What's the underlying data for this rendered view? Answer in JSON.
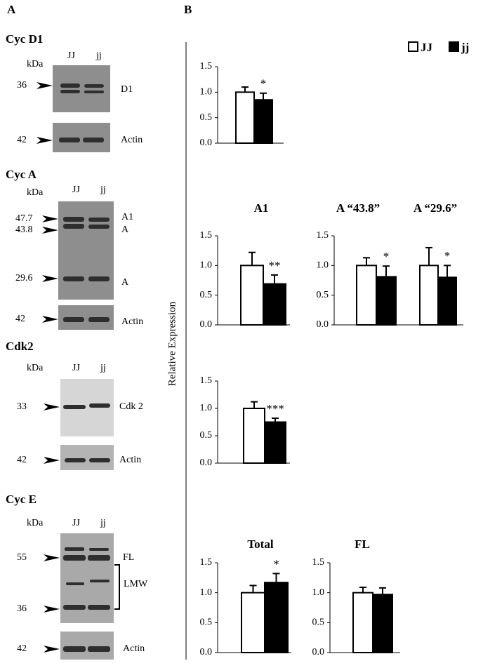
{
  "panel_a": {
    "label": "A",
    "blots": [
      {
        "title": "Cyc D1",
        "kda": "kDa",
        "lanes": [
          "JJ",
          "jj"
        ],
        "markers": [
          "36",
          "42"
        ],
        "bands": [
          "D1",
          "Actin"
        ]
      },
      {
        "title": "Cyc A",
        "kda": "kDa",
        "lanes": [
          "JJ",
          "jj"
        ],
        "markers": [
          "47.7",
          "43.8",
          "29.6",
          "42"
        ],
        "bands": [
          "A1",
          "A",
          "A",
          "Actin"
        ]
      },
      {
        "title": "Cdk2",
        "kda": "kDa",
        "lanes": [
          "JJ",
          "jj"
        ],
        "markers": [
          "33",
          "42"
        ],
        "bands": [
          "Cdk 2",
          "Actin"
        ]
      },
      {
        "title": "Cyc E",
        "kda": "kDa",
        "lanes": [
          "JJ",
          "jj"
        ],
        "markers": [
          "55",
          "36",
          "42"
        ],
        "bands": [
          "FL",
          "LMW",
          "Actin"
        ]
      }
    ]
  },
  "panel_b": {
    "label": "B",
    "y_label": "Relative Expression",
    "legend": [
      "JJ",
      "jj"
    ],
    "legend_colors": [
      "#ffffff",
      "#000000"
    ]
  },
  "chart_data": [
    {
      "type": "bar",
      "values": [
        1,
        0.85
      ],
      "errors": [
        0.1,
        0.13
      ],
      "colors": [
        "#ffffff",
        "#000000"
      ],
      "annotation": "*",
      "ylim": [
        0,
        1.5
      ],
      "yticks": [
        {
          "value": 0,
          "label": "0.0"
        },
        {
          "value": 0.5,
          "label": "0.5"
        },
        {
          "value": 1,
          "label": "1.0"
        },
        {
          "value": 1.5,
          "label": "1.5"
        }
      ]
    },
    {
      "type": "bar",
      "title": "A1",
      "values": [
        1,
        0.69
      ],
      "errors": [
        0.22,
        0.15
      ],
      "colors": [
        "#ffffff",
        "#000000"
      ],
      "annotation": "**",
      "ylim": [
        0,
        1.5
      ],
      "yticks": [
        {
          "value": 0,
          "label": "0.0"
        },
        {
          "value": 0.5,
          "label": "0.5"
        },
        {
          "value": 1,
          "label": "1.0"
        },
        {
          "value": 1.5,
          "label": "1.5"
        }
      ]
    },
    {
      "type": "bar",
      "title": "A “43.8”",
      "values": [
        1,
        0.81
      ],
      "errors": [
        0.13,
        0.18
      ],
      "colors": [
        "#ffffff",
        "#000000"
      ],
      "annotation": "*",
      "ylim": [
        0,
        1.5
      ],
      "yticks": [
        {
          "value": 0,
          "label": "0.0"
        },
        {
          "value": 0.5,
          "label": "0.5"
        },
        {
          "value": 1,
          "label": "1.0"
        },
        {
          "value": 1.5,
          "label": "1.5"
        }
      ]
    },
    {
      "type": "bar",
      "title": "A “29.6”",
      "values": [
        1,
        0.8
      ],
      "errors": [
        0.3,
        0.2
      ],
      "colors": [
        "#ffffff",
        "#000000"
      ],
      "annotation": "*",
      "ylim": [
        0,
        1.5
      ]
    },
    {
      "type": "bar",
      "values": [
        1,
        0.75
      ],
      "errors": [
        0.12,
        0.07
      ],
      "colors": [
        "#ffffff",
        "#000000"
      ],
      "annotation": "***",
      "ylim": [
        0,
        1.5
      ],
      "yticks": [
        {
          "value": 0,
          "label": "0.0"
        },
        {
          "value": 0.5,
          "label": "0.5"
        },
        {
          "value": 1,
          "label": "1.0"
        },
        {
          "value": 1.5,
          "label": "1.5"
        }
      ]
    },
    {
      "type": "bar",
      "title": "Total",
      "values": [
        1,
        1.17
      ],
      "errors": [
        0.12,
        0.15
      ],
      "colors": [
        "#ffffff",
        "#000000"
      ],
      "annotation": "*",
      "ylim": [
        0,
        1.5
      ],
      "yticks": [
        {
          "value": 0,
          "label": "0.0"
        },
        {
          "value": 0.5,
          "label": "0.5"
        },
        {
          "value": 1,
          "label": "1.0"
        },
        {
          "value": 1.5,
          "label": "1.5"
        }
      ]
    },
    {
      "type": "bar",
      "title": "FL",
      "values": [
        1,
        0.97
      ],
      "errors": [
        0.09,
        0.11
      ],
      "colors": [
        "#ffffff",
        "#000000"
      ],
      "ylim": [
        0,
        1.5
      ],
      "yticks": [
        {
          "value": 0,
          "label": "0.0"
        },
        {
          "value": 0.5,
          "label": "0.5"
        },
        {
          "value": 1,
          "label": "1.0"
        },
        {
          "value": 1.5,
          "label": "1.5"
        }
      ]
    }
  ]
}
